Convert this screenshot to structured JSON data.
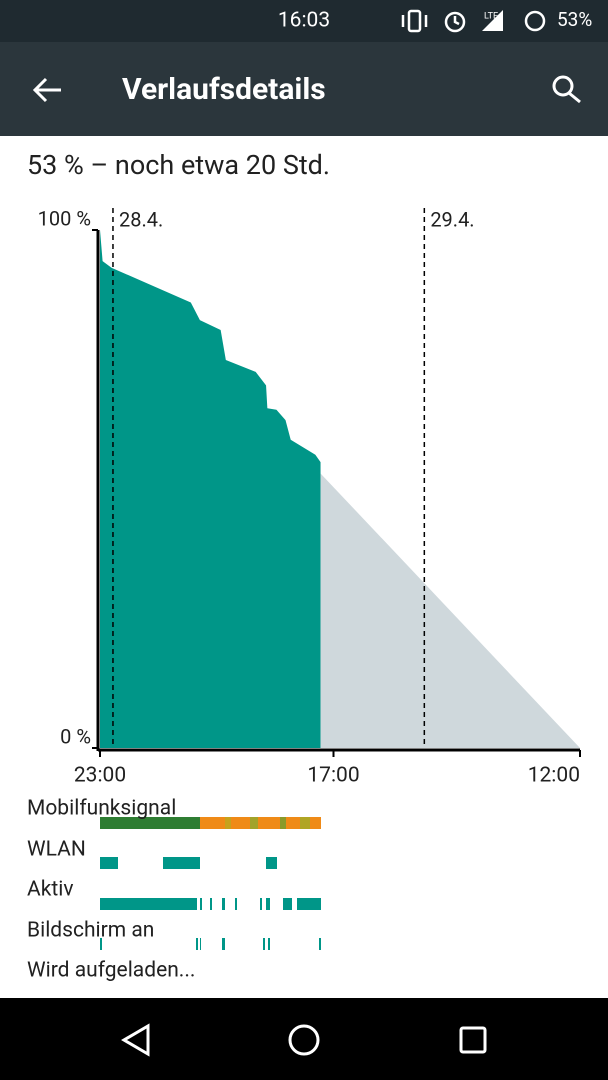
{
  "status_bar": {
    "time": "16:03",
    "network": "LTE",
    "battery": "53%"
  },
  "toolbar": {
    "title": "Verlaufsdetails"
  },
  "summary": "53 % – noch etwa 20 Std.",
  "chart_data": {
    "type": "area",
    "xlim": [
      0,
      37
    ],
    "xticks": [
      {
        "value": 0,
        "label": "23:00"
      },
      {
        "value": 18,
        "label": "17:00"
      },
      {
        "value": 37,
        "label": "12:00"
      }
    ],
    "ylim": [
      0,
      100
    ],
    "yticks": [
      {
        "value": 0,
        "label": "0 %"
      },
      {
        "value": 100,
        "label": "100 %"
      }
    ],
    "date_markers": [
      {
        "value": 1,
        "label": "28.4."
      },
      {
        "value": 25,
        "label": "29.4."
      }
    ],
    "series": [
      {
        "color": "#009688",
        "x": [
          0,
          0.2,
          0.9,
          3.9,
          7,
          7.7,
          9.3,
          9.7,
          12,
          12.8,
          12.9,
          13.6,
          14.3,
          14.7,
          16.6,
          17,
          17
        ],
        "values": [
          100,
          94,
          92.7,
          89.4,
          86,
          82.6,
          80.7,
          74.9,
          72.6,
          70,
          65.6,
          65.3,
          63.3,
          59.5,
          56.6,
          55.2,
          53
        ]
      },
      {
        "color": "#cfd8dc",
        "x": [
          17,
          37
        ],
        "values": [
          53,
          0
        ]
      }
    ]
  },
  "activity_rows": [
    "Mobilfunksignal",
    "WLAN",
    "Aktiv",
    "Bildschirm an",
    "Wird aufgeladen..."
  ]
}
